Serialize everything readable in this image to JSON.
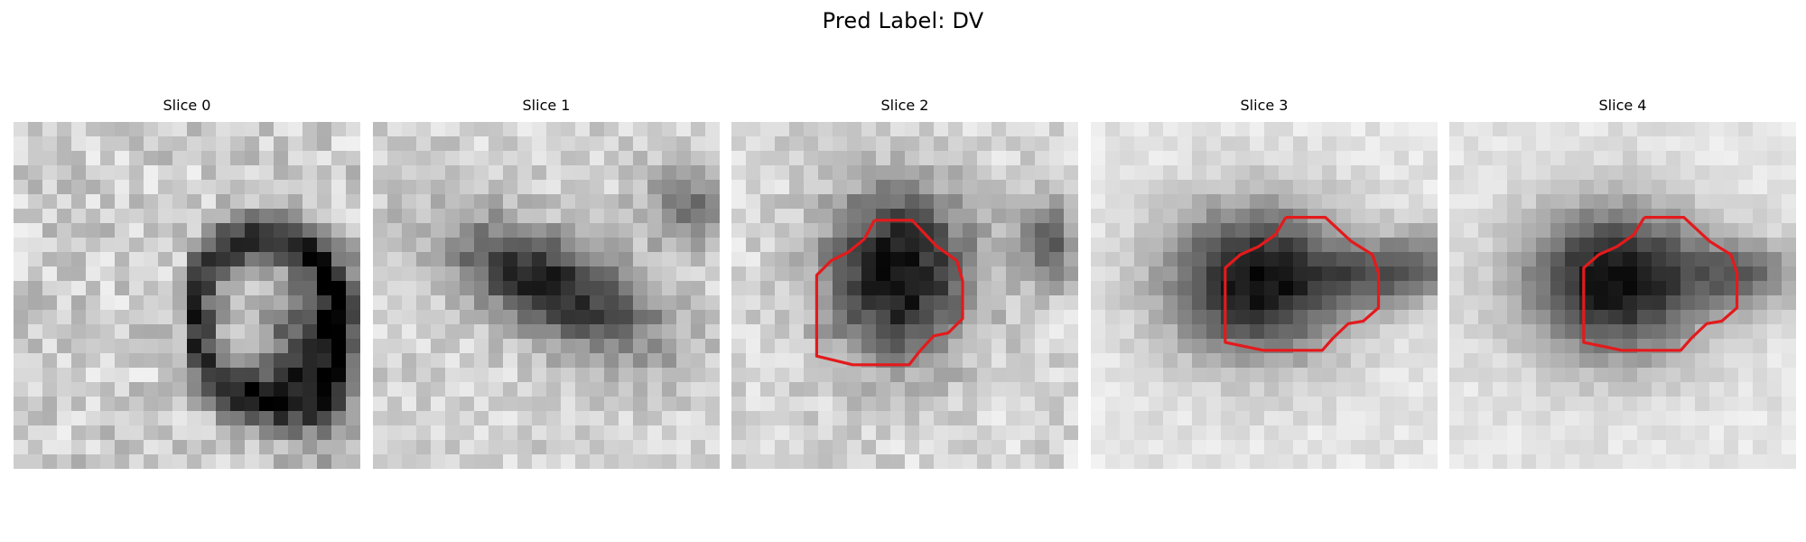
{
  "figure": {
    "title": "Pred Label: DV"
  },
  "slices": [
    {
      "title": "Slice 0",
      "has_contour": false
    },
    {
      "title": "Slice 1",
      "has_contour": false
    },
    {
      "title": "Slice 2",
      "has_contour": true
    },
    {
      "title": "Slice 3",
      "has_contour": true
    },
    {
      "title": "Slice 4",
      "has_contour": true
    }
  ],
  "colors": {
    "contour": "#e31a1c"
  },
  "images": [
    {
      "name": "slice-0",
      "description": "Grayscale noisy patch with dark irregular ring-like structure on right side",
      "grid": 24
    },
    {
      "name": "slice-1",
      "description": "Grayscale patch with dark elongated diagonal blob in center",
      "grid": 24
    },
    {
      "name": "slice-2",
      "description": "Grayscale patch with dark roughly circular blob, contour overlay",
      "grid": 24
    },
    {
      "name": "slice-3",
      "description": "Smooth grayscale patch with dark oval blob and faint extension to right, contour overlay",
      "grid": 24
    },
    {
      "name": "slice-4",
      "description": "Smooth grayscale patch with dark oval blob and faint extension to right, contour overlay",
      "grid": 24
    }
  ]
}
